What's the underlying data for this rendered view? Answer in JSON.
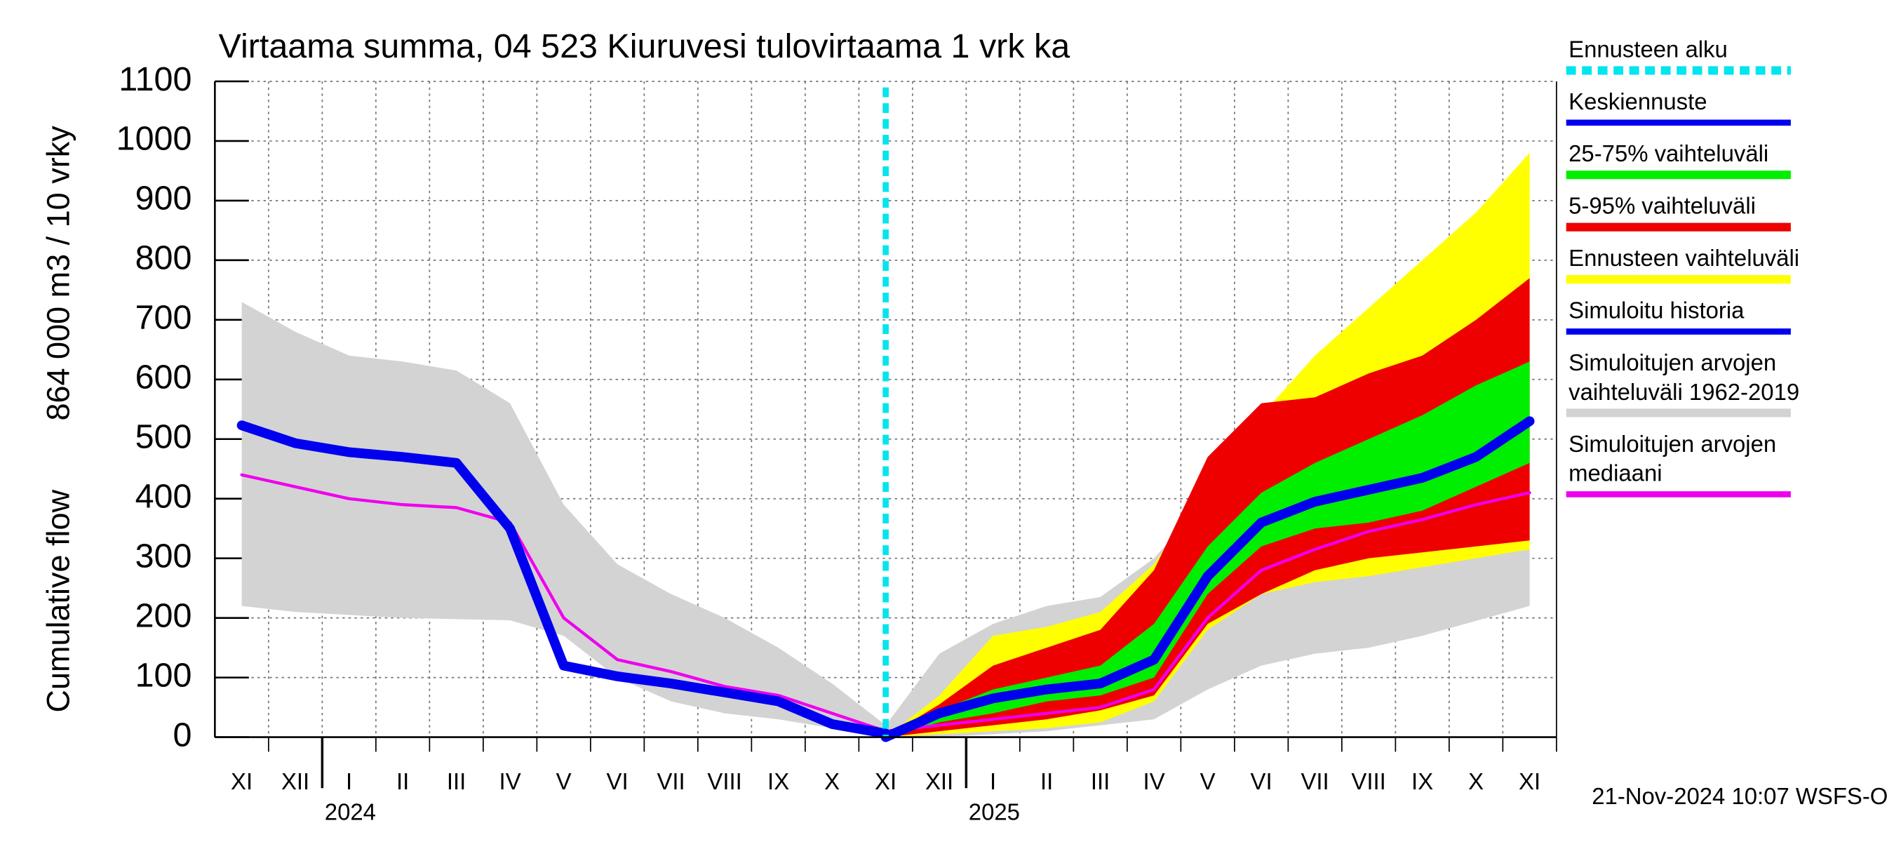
{
  "chart_data": {
    "type": "fan",
    "title": "Virtaama summa, 04 523 Kiuruvesi tulovirtaama 1 vrk ka",
    "ylabel": [
      "Cumulative flow",
      "864 000 m3 / 10 vrky"
    ],
    "footer": "21-Nov-2024 10:07 WSFS-O",
    "categories": [
      "XI",
      "XII",
      "I",
      "II",
      "III",
      "IV",
      "V",
      "VI",
      "VII",
      "VIII",
      "IX",
      "X",
      "XI",
      "XII",
      "I",
      "II",
      "III",
      "IV",
      "V",
      "VI",
      "VII",
      "VIII",
      "IX",
      "X",
      "XI"
    ],
    "years": [
      "2024",
      "2025"
    ],
    "ylim": [
      0,
      1100
    ],
    "yticks": [
      0,
      100,
      200,
      300,
      400,
      500,
      600,
      700,
      800,
      900,
      1000,
      1100
    ],
    "grid": true,
    "series": [
      {
        "name": "Ennusteen alku",
        "color": "#00e5ee",
        "kind": "start"
      },
      {
        "name": "Keskiennuste",
        "color": "#0000ee",
        "kind": "line",
        "width": 8,
        "values": [
          null,
          null,
          null,
          null,
          null,
          null,
          null,
          null,
          null,
          null,
          null,
          null,
          0,
          40,
          65,
          80,
          90,
          130,
          270,
          360,
          395,
          415,
          435,
          470,
          530
        ]
      },
      {
        "name": "25-75% vaihteluväli",
        "color": "#00ee00",
        "kind": "band",
        "lower": [
          null,
          null,
          null,
          null,
          null,
          null,
          null,
          null,
          null,
          null,
          null,
          null,
          0,
          25,
          40,
          60,
          70,
          100,
          240,
          320,
          350,
          360,
          380,
          420,
          460
        ],
        "upper": [
          null,
          null,
          null,
          null,
          null,
          null,
          null,
          null,
          null,
          null,
          null,
          null,
          0,
          45,
          80,
          100,
          120,
          190,
          320,
          410,
          460,
          500,
          540,
          590,
          630
        ]
      },
      {
        "name": "5-95% vaihteluväli",
        "color": "#ee0000",
        "kind": "band",
        "lower": [
          null,
          null,
          null,
          null,
          null,
          null,
          null,
          null,
          null,
          null,
          null,
          null,
          0,
          10,
          20,
          30,
          45,
          70,
          190,
          240,
          280,
          300,
          310,
          320,
          330
        ],
        "upper": [
          null,
          null,
          null,
          null,
          null,
          null,
          null,
          null,
          null,
          null,
          null,
          null,
          0,
          55,
          120,
          150,
          180,
          280,
          470,
          560,
          570,
          610,
          640,
          700,
          770
        ]
      },
      {
        "name": "Ennusteen vaihteluväli",
        "color": "#ffff00",
        "kind": "band",
        "lower": [
          null,
          null,
          null,
          null,
          null,
          null,
          null,
          null,
          null,
          null,
          null,
          null,
          0,
          5,
          10,
          15,
          25,
          60,
          180,
          240,
          260,
          270,
          285,
          300,
          315
        ],
        "upper": [
          null,
          null,
          null,
          null,
          null,
          null,
          null,
          null,
          null,
          null,
          null,
          null,
          0,
          70,
          170,
          185,
          210,
          290,
          420,
          540,
          640,
          720,
          800,
          880,
          980
        ]
      },
      {
        "name": "Simuloitu historia",
        "color": "#0000ee",
        "kind": "line",
        "width": 8,
        "values": [
          523,
          493,
          478,
          470,
          460,
          350,
          120,
          102,
          90,
          75,
          60,
          22,
          6,
          null,
          null,
          null,
          null,
          null,
          null,
          null,
          null,
          null,
          null,
          null,
          null
        ]
      },
      {
        "name": "Simuloitujen arvojen vaihteluväli 1962-2019",
        "color": "#d3d3d3",
        "kind": "band",
        "lower": [
          220,
          210,
          205,
          200,
          198,
          196,
          170,
          100,
          60,
          40,
          30,
          15,
          0,
          0,
          5,
          10,
          20,
          30,
          80,
          120,
          140,
          150,
          170,
          195,
          220
        ],
        "upper": [
          730,
          680,
          640,
          630,
          615,
          560,
          390,
          290,
          240,
          200,
          150,
          90,
          20,
          140,
          190,
          220,
          235,
          300,
          400,
          490,
          570,
          620,
          650,
          680,
          720
        ]
      },
      {
        "name": "Simuloitujen arvojen mediaani",
        "color": "#ee00ee",
        "kind": "line",
        "width": 2.5,
        "values": [
          440,
          420,
          400,
          390,
          385,
          360,
          200,
          130,
          110,
          85,
          70,
          40,
          10,
          20,
          30,
          40,
          50,
          80,
          200,
          280,
          315,
          345,
          365,
          390,
          410
        ]
      }
    ]
  }
}
